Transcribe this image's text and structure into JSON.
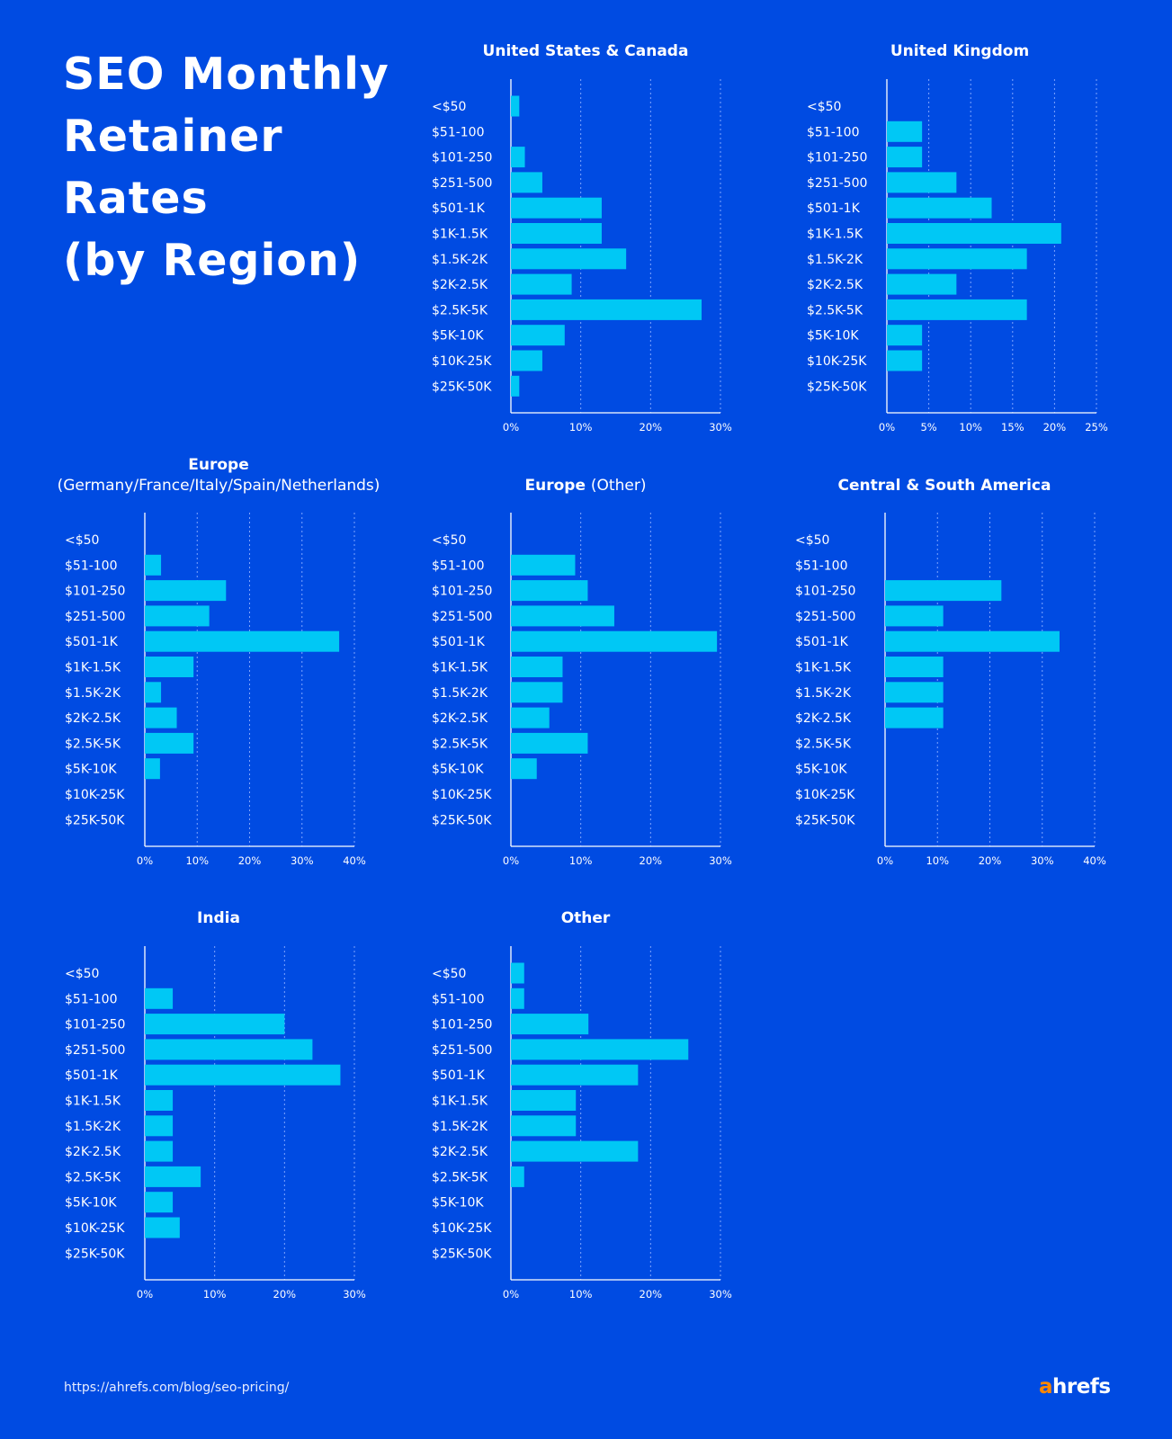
{
  "page": {
    "title_lines": [
      "SEO Monthly",
      "Retainer",
      "Rates",
      "(by Region)"
    ],
    "footer_url": "https://ahrefs.com/blog/seo-pricing/",
    "brand": {
      "first": "a",
      "rest": "hrefs"
    }
  },
  "colors": {
    "background": "#004be2",
    "bar": "#00c8f5",
    "text": "#ffffff",
    "brand_accent": "#ff8800",
    "grid": "#7fa6ff"
  },
  "chart_data": [
    {
      "type": "bar",
      "orientation": "horizontal",
      "title": "United States & Canada",
      "subtitle": "",
      "categories": [
        "<$50",
        "$51-100",
        "$101-250",
        "$251-500",
        "$501-1K",
        "$1K-1.5K",
        "$1.5K-2K",
        "$2K-2.5K",
        "$2.5K-5K",
        "$5K-10K",
        "$10K-25K",
        "$25K-50K"
      ],
      "values": [
        1.2,
        0,
        2,
        4.5,
        13,
        13,
        16.5,
        8.7,
        27.3,
        7.7,
        4.5,
        1.2
      ],
      "ticks": [
        "0%",
        "10%",
        "20%",
        "30%"
      ],
      "xlim": [
        0,
        30
      ],
      "grid": true
    },
    {
      "type": "bar",
      "orientation": "horizontal",
      "title": "United Kingdom",
      "subtitle": "",
      "categories": [
        "<$50",
        "$51-100",
        "$101-250",
        "$251-500",
        "$501-1K",
        "$1K-1.5K",
        "$1.5K-2K",
        "$2K-2.5K",
        "$2.5K-5K",
        "$5K-10K",
        "$10K-25K",
        "$25K-50K"
      ],
      "values": [
        0,
        4.2,
        4.2,
        8.3,
        12.5,
        20.8,
        16.7,
        8.3,
        16.7,
        4.2,
        4.2,
        0
      ],
      "ticks": [
        "0%",
        "5%",
        "10%",
        "15%",
        "20%",
        "25%"
      ],
      "xlim": [
        0,
        25
      ],
      "grid": true
    },
    {
      "type": "bar",
      "orientation": "horizontal",
      "title": "Europe",
      "subtitle": "(Germany/France/Italy/Spain/Netherlands)",
      "categories": [
        "<$50",
        "$51-100",
        "$101-250",
        "$251-500",
        "$501-1K",
        "$1K-1.5K",
        "$1.5K-2K",
        "$2K-2.5K",
        "$2.5K-5K",
        "$5K-10K",
        "$10K-25K",
        "$25K-50K"
      ],
      "values": [
        0,
        3.1,
        15.5,
        12.3,
        37.1,
        9.3,
        3.1,
        6.1,
        9.3,
        2.9,
        0,
        0
      ],
      "ticks": [
        "0%",
        "10%",
        "20%",
        "30%",
        "40%"
      ],
      "xlim": [
        0,
        40
      ],
      "grid": true
    },
    {
      "type": "bar",
      "orientation": "horizontal",
      "title": "Europe",
      "subtitle": "(Other)",
      "categories": [
        "<$50",
        "$51-100",
        "$101-250",
        "$251-500",
        "$501-1K",
        "$1K-1.5K",
        "$1.5K-2K",
        "$2K-2.5K",
        "$2.5K-5K",
        "$5K-10K",
        "$10K-25K",
        "$25K-50K"
      ],
      "values": [
        0,
        9.2,
        11,
        14.8,
        29.5,
        7.4,
        7.4,
        5.5,
        11,
        3.7,
        0,
        0
      ],
      "ticks": [
        "0%",
        "10%",
        "20%",
        "30%"
      ],
      "xlim": [
        0,
        30
      ],
      "grid": true
    },
    {
      "type": "bar",
      "orientation": "horizontal",
      "title": "Central & South America",
      "subtitle": "",
      "categories": [
        "<$50",
        "$51-100",
        "$101-250",
        "$251-500",
        "$501-1K",
        "$1K-1.5K",
        "$1.5K-2K",
        "$2K-2.5K",
        "$2.5K-5K",
        "$5K-10K",
        "$10K-25K",
        "$25K-50K"
      ],
      "values": [
        0,
        0,
        22.2,
        11.1,
        33.3,
        11.1,
        11.1,
        11.1,
        0,
        0,
        0,
        0
      ],
      "ticks": [
        "0%",
        "10%",
        "20%",
        "30%",
        "40%"
      ],
      "xlim": [
        0,
        40
      ],
      "grid": true
    },
    {
      "type": "bar",
      "orientation": "horizontal",
      "title": "India",
      "subtitle": "",
      "categories": [
        "<$50",
        "$51-100",
        "$101-250",
        "$251-500",
        "$501-1K",
        "$1K-1.5K",
        "$1.5K-2K",
        "$2K-2.5K",
        "$2.5K-5K",
        "$5K-10K",
        "$10K-25K",
        "$25K-50K"
      ],
      "values": [
        0,
        4,
        20,
        24,
        28,
        4,
        4,
        4,
        8,
        4,
        5,
        0
      ],
      "ticks": [
        "0%",
        "10%",
        "20%",
        "30%"
      ],
      "xlim": [
        0,
        30
      ],
      "grid": true
    },
    {
      "type": "bar",
      "orientation": "horizontal",
      "title": "Other",
      "subtitle": "",
      "categories": [
        "<$50",
        "$51-100",
        "$101-250",
        "$251-500",
        "$501-1K",
        "$1K-1.5K",
        "$1.5K-2K",
        "$2K-2.5K",
        "$2.5K-5K",
        "$5K-10K",
        "$10K-25K",
        "$25K-50K"
      ],
      "values": [
        1.9,
        1.9,
        11.1,
        25.4,
        18.2,
        9.3,
        9.3,
        18.2,
        1.9,
        0,
        0,
        0
      ],
      "ticks": [
        "0%",
        "10%",
        "20%",
        "30%"
      ],
      "xlim": [
        0,
        30
      ],
      "grid": true
    }
  ]
}
